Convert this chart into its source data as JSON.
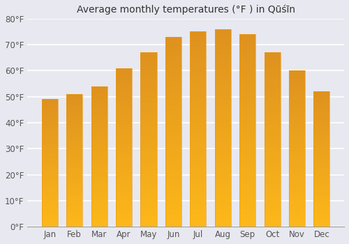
{
  "title": "Average monthly temperatures (°F ) in Qūśīn",
  "months": [
    "Jan",
    "Feb",
    "Mar",
    "Apr",
    "May",
    "Jun",
    "Jul",
    "Aug",
    "Sep",
    "Oct",
    "Nov",
    "Dec"
  ],
  "values": [
    49,
    51,
    54,
    61,
    67,
    73,
    75,
    76,
    74,
    67,
    60,
    52
  ],
  "bar_color": "#FDB827",
  "bar_edge_color": "#E8960A",
  "ylim": [
    0,
    80
  ],
  "yticks": [
    0,
    10,
    20,
    30,
    40,
    50,
    60,
    70,
    80
  ],
  "ytick_labels": [
    "0°F",
    "10°F",
    "20°F",
    "30°F",
    "40°F",
    "50°F",
    "60°F",
    "70°F",
    "80°F"
  ],
  "background_color": "#e8e8f0",
  "plot_bg_color": "#e8e8f0",
  "grid_color": "#ffffff",
  "title_fontsize": 10,
  "tick_fontsize": 8.5,
  "title_color": "#333333",
  "tick_color": "#555555"
}
